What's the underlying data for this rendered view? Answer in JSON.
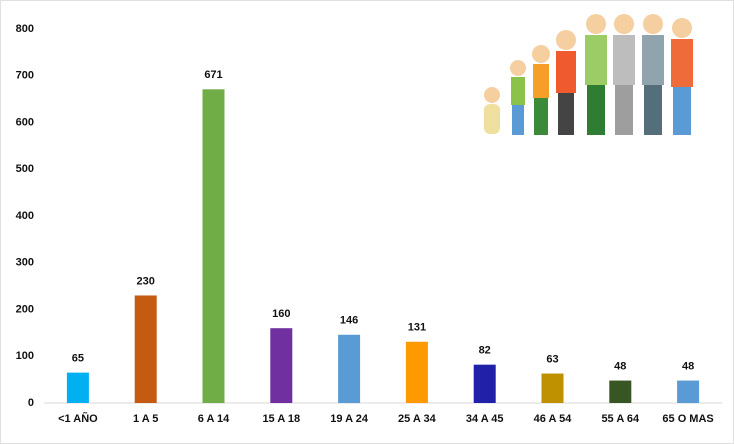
{
  "chart_data": {
    "type": "bar",
    "categories": [
      "<1 AÑO",
      "1 A 5",
      "6 A 14",
      "15 A 18",
      "19 A 24",
      "25 A 34",
      "34 A 45",
      "46 A 54",
      "55 A 64",
      "65 O MAS"
    ],
    "values": [
      65,
      230,
      671,
      160,
      146,
      131,
      82,
      63,
      48,
      48
    ],
    "colors": [
      "#00b0f0",
      "#c55a11",
      "#70ad47",
      "#7030a0",
      "#5b9bd5",
      "#ff9900",
      "#2020a8",
      "#bf9000",
      "#375623",
      "#5b9bd5"
    ],
    "ylim": [
      0,
      800
    ],
    "yticks": [
      0,
      100,
      200,
      300,
      400,
      500,
      600,
      700,
      800
    ]
  }
}
